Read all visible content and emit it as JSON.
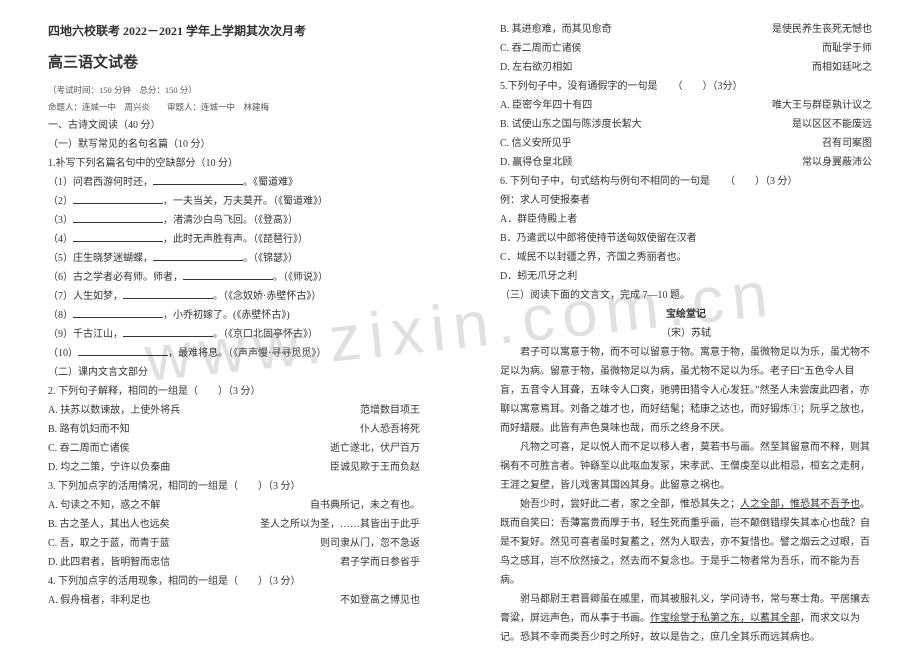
{
  "watermark": "www.zixin.com.cn",
  "left": {
    "heading1": "四地六校联考 2022－2021 学年上学期其次次月考",
    "heading2": "高三语文试卷",
    "meta1": "（考试时间：150 分钟　总分：150 分）",
    "meta2": "命题人：连城一中　周兴炎　　审题人：连城一中　林建梅",
    "sec1": "一、古诗文阅读（40 分）",
    "sec1a": "（一）默写常见的名句名篇（10 分）",
    "q1": "1.补写下列名篇名句中的空缺部分（10 分）",
    "lines": [
      {
        "l": "（1）问君西游何时还，",
        "r": "。《蜀道难》"
      },
      {
        "l": "（2）",
        "mid": "，一夫当关，万夫莫开。（《蜀道难》）",
        "r": ""
      },
      {
        "l": "（3）",
        "mid": "，渚清沙白鸟飞回。（《登高》）",
        "r": ""
      },
      {
        "l": "（4）",
        "mid": "，此时无声胜有声。（《琵琶行》）",
        "r": ""
      },
      {
        "l": "（5）庄生晓梦迷蝴蝶，",
        "r": "。（《锦瑟》）"
      },
      {
        "l": "（6）古之学者必有师。师者，",
        "r": "。（《师说》）"
      },
      {
        "l": "（7）人生如梦，",
        "r": "。（《念奴娇·赤壁怀古》）"
      },
      {
        "l": "（8）",
        "mid": "，小乔初嫁了。(《赤壁怀古》)",
        "r": ""
      },
      {
        "l": "（9）千古江山，",
        "r": "。（《京口北固亭怀古》）"
      },
      {
        "l": "（10）",
        "mid": "，最难将息。（《声声慢·寻寻觅觅》）",
        "r": ""
      }
    ],
    "sec1b": "（二）课内文言文部分",
    "q2": "2. 下列句子解释，相同的一组是（　　）（3 分）",
    "opt2": [
      {
        "a": "A. 扶苏以数谏故，上使外将兵",
        "b": "范增数目项王"
      },
      {
        "a": "B. 路有饥妇而不知",
        "b": "仆人恐吾将死"
      },
      {
        "a": "C. 吞二周而亡诸侯",
        "b": "逝亡遂北，伏尸百万"
      },
      {
        "a": "D. 均之二策，宁许以负秦曲",
        "b": "臣诚见欺于王而负赵"
      }
    ],
    "q3": "3. 下列加点字的活用情况，相同的一组是（　　）（3 分）",
    "opt3": [
      {
        "a": "A. 句读之不知，惑之不解",
        "b": "自书典所记，未之有也。"
      },
      {
        "a": "B. 古之圣人，其出人也远矣",
        "b": "圣人之所以为圣，……其皆出于此乎"
      },
      {
        "a": "C. 吾，取之于蓝，而青于蓝",
        "b": "则司隶从门，忽不急返"
      },
      {
        "a": "D. 此四君者，皆明智而忠信",
        "b": "君子学而日参省乎"
      }
    ],
    "q4": "4. 下列加点字的活用现象，相同的一组是（　　）（3 分）",
    "opt4": [
      {
        "a": "A. 假舟楫者，非利足也",
        "b": "不如登高之博见也"
      }
    ]
  },
  "right": {
    "rows1": [
      {
        "a": "B. 其进愈难，而其见愈奇",
        "b": "是使民养生丧死无憾也"
      },
      {
        "a": "C. 吞二周而亡诸侯",
        "b": "而耻学于师"
      },
      {
        "a": "D. 左右欲刃相如",
        "b": "而相如廷叱之"
      }
    ],
    "q5": "5.下列句子中，没有通假字的一句是　　（　　）（3分）",
    "rows5": [
      {
        "a": "A. 臣密今年四十有四",
        "b": "唯大王与群臣孰计议之"
      },
      {
        "a": "B. 试使山东之国与陈涉度长絜大",
        "b": "是以区区不能废远"
      },
      {
        "a": "C. 信义安所见乎",
        "b": "召有司案图"
      },
      {
        "a": "D. 赢得仓皇北顾",
        "b": "常以身翼蔽沛公"
      }
    ],
    "q6": "6. 下列句子中，句式结构与例句不相同的一句是　　（　　）（3 分）",
    "q6ex": "例：求人可使报秦者",
    "rows6": [
      "A．群臣侍殿上者",
      "B．乃遣武以中郎将使持节送匈奴使留在汉者",
      "C．域民不以封疆之界，齐国之秀丽者也。",
      "D．蚓无爪牙之利"
    ],
    "sec3": "（三）阅读下面的文言文，完成 7—10 题。",
    "ttl": "宝绘堂记",
    "auth": "（宋）苏轼",
    "p1": "君子可以寓意于物，而不可以留意于物。寓意于物，虽微物足以为乐，虽尤物不足以为病。留意于物，虽微物足以为病，虽尤物不足以为乐。老子曰“五色令人目盲，五音令人耳聋，五味令人口爽，驰骋田猎令人心发狂。”然圣人未尝废此四者，亦聊以寓意焉耳。刘备之雄才也，而好结髦；嵇康之达也，而好锻炼①；阮孚之放也，而好蜡屐。此皆有声色臭味也哉，而乐之终身不厌。",
    "p2": "凡物之可喜，足以悦人而不足以移人者，莫若书与画。然至其留意而不释，则其祸有不可胜言者。钟繇至以此呕血发冢，宋孝武、王僧虔至以此相忌，桓玄之走舸，王涯之复壁，皆儿戏害其国凶其身。此留意之祸也。",
    "p3": "始吾少时，尝好此二者，家之全部，惟恐其失之；",
    "p3u": "人之全部，惟恐其不吾予也",
    "p3b": "。既而自笑曰：吾薄富贵而厚于书，轻生死而重乎画，岂不颠倒错缪失其本心也哉？自是不复好。然见可喜者虽时复蓄之，然为人取去，亦不复惜也。譬之烟云之过眼，百鸟之感耳，岂不欣然接之，然去而不复念也。于是乎二物者常为吾乐，而不能为吾病。",
    "p4a": "驸马都尉王君晋卿虽在戚里，而其被服礼义，学问诗书，常与寒士角。平居攘去膏粱，屏远声色，而从事于书画。",
    "p4u": "作宝绘堂于私第之东，以蓄其全部",
    "p4b": "，而求文以为记。恐其不幸而类吾少时之所好，故以是告之，庶几全其乐而远其病也。"
  }
}
